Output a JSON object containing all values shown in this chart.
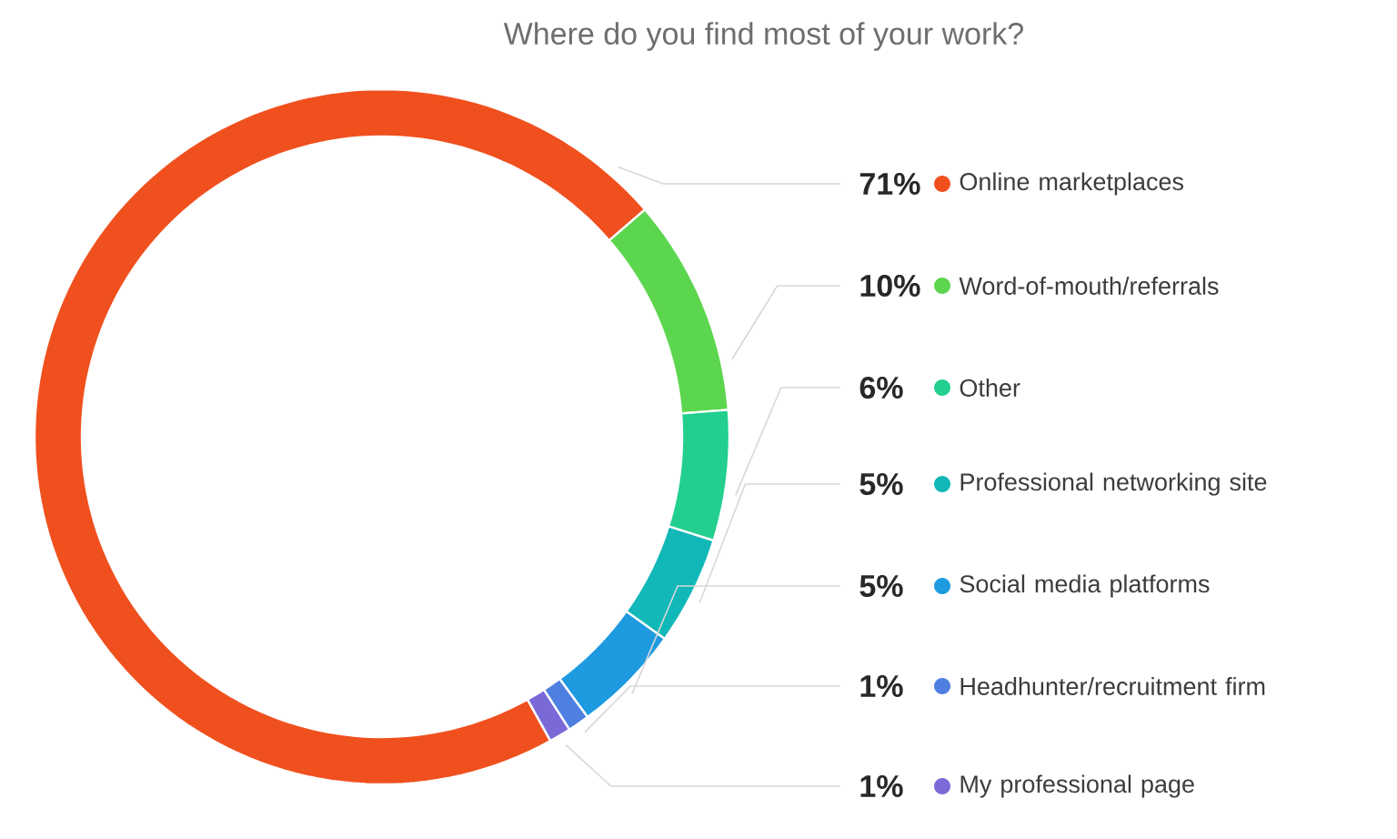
{
  "chart_data": {
    "type": "donut",
    "title": "Where do you find most of your work?",
    "categories": [
      "Online marketplaces",
      "Word-of-mouth/referrals",
      "Other",
      "Professional networking site",
      "Social media platforms",
      "Headhunter/recruitment firm",
      "My professional page"
    ],
    "values": [
      71,
      10,
      6,
      5,
      5,
      1,
      1
    ],
    "value_labels": [
      "71%",
      "10%",
      "6%",
      "5%",
      "5%",
      "1%",
      "1%"
    ],
    "legend": "right",
    "colors": [
      "#f0501e",
      "#5cd64e",
      "#22cf8f",
      "#12b8b8",
      "#1e9ae0",
      "#4f7fe0",
      "#7a6ad8"
    ]
  }
}
